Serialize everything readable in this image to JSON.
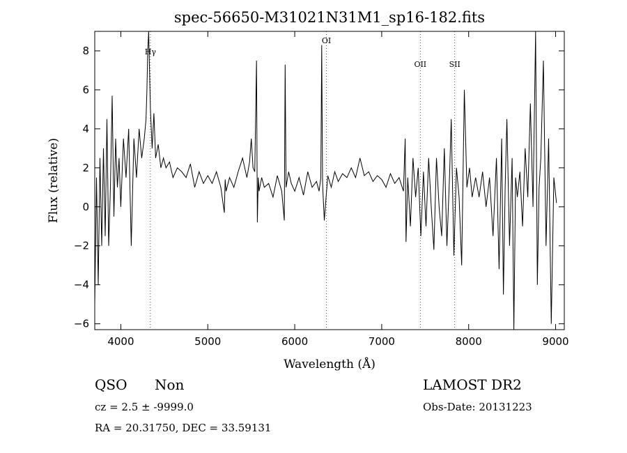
{
  "chart_data": {
    "type": "line",
    "title": "spec-56650-M31021N31M1_sp16-182.fits",
    "xlabel": "Wavelength (Å)",
    "ylabel": "Flux (relative)",
    "xlim": [
      3700,
      9100
    ],
    "ylim": [
      -6.3,
      9.0
    ],
    "xticks": [
      4000,
      5000,
      6000,
      7000,
      8000,
      9000
    ],
    "yticks": [
      -6,
      -4,
      -2,
      0,
      2,
      4,
      6,
      8
    ],
    "line_markers": [
      {
        "label": "Hγ",
        "wavelength": 4340
      },
      {
        "label": "OI",
        "wavelength": 6364
      },
      {
        "label": "OII",
        "wavelength": 7444
      },
      {
        "label": "SII",
        "wavelength": 7840
      }
    ],
    "series": [
      {
        "x": [
          3700,
          3720,
          3740,
          3760,
          3780,
          3800,
          3820,
          3840,
          3860,
          3880,
          3900,
          3920,
          3940,
          3960,
          3980,
          4000,
          4030,
          4060,
          4090,
          4120,
          4150,
          4180,
          4210,
          4240,
          4270,
          4290,
          4300,
          4310,
          4320,
          4340,
          4360,
          4380,
          4400,
          4430,
          4460,
          4490,
          4520,
          4560,
          4600,
          4650,
          4700,
          4750,
          4800,
          4850,
          4900,
          4950,
          5000,
          5050,
          5100,
          5150,
          5190,
          5200,
          5210,
          5250,
          5300,
          5350,
          5400,
          5450,
          5480,
          5500,
          5520,
          5540,
          5560,
          5570,
          5580,
          5590,
          5620,
          5650,
          5700,
          5750,
          5800,
          5850,
          5880,
          5890,
          5900,
          5930,
          5960,
          6000,
          6050,
          6100,
          6150,
          6200,
          6250,
          6280,
          6300,
          6310,
          6320,
          6340,
          6380,
          6420,
          6460,
          6500,
          6550,
          6600,
          6650,
          6700,
          6750,
          6800,
          6850,
          6900,
          6950,
          7000,
          7050,
          7100,
          7150,
          7200,
          7250,
          7270,
          7280,
          7300,
          7330,
          7360,
          7390,
          7420,
          7450,
          7480,
          7510,
          7540,
          7570,
          7600,
          7630,
          7660,
          7690,
          7720,
          7750,
          7780,
          7800,
          7830,
          7860,
          7890,
          7920,
          7950,
          7980,
          8010,
          8040,
          8080,
          8120,
          8160,
          8200,
          8240,
          8280,
          8320,
          8350,
          8380,
          8400,
          8420,
          8440,
          8470,
          8500,
          8520,
          8540,
          8560,
          8590,
          8620,
          8650,
          8680,
          8710,
          8740,
          8770,
          8790,
          8810,
          8830,
          8860,
          8890,
          8920,
          8950,
          8980,
          9010
        ],
        "y": [
          -5.0,
          1.5,
          -4.0,
          2.5,
          -2.0,
          3.0,
          -1.5,
          4.5,
          -2.0,
          1.0,
          5.7,
          -0.5,
          3.5,
          1.0,
          2.5,
          0.0,
          3.5,
          1.5,
          4.0,
          -2.0,
          3.5,
          1.5,
          4.0,
          2.5,
          3.5,
          4.5,
          6.0,
          8.0,
          9.0,
          5.0,
          3.0,
          4.8,
          2.5,
          3.2,
          2.0,
          2.5,
          2.0,
          2.3,
          1.5,
          2.0,
          1.8,
          1.5,
          2.2,
          1.0,
          1.8,
          1.2,
          1.6,
          1.2,
          1.8,
          1.0,
          -0.3,
          1.4,
          0.8,
          1.5,
          1.0,
          1.8,
          2.5,
          1.5,
          2.3,
          3.5,
          2.0,
          1.8,
          7.5,
          -0.8,
          1.5,
          0.8,
          1.5,
          1.0,
          1.2,
          0.5,
          1.6,
          0.8,
          -0.7,
          7.3,
          1.0,
          1.8,
          1.2,
          0.8,
          1.5,
          0.6,
          1.8,
          1.0,
          1.3,
          0.8,
          1.5,
          8.3,
          1.2,
          -0.7,
          1.6,
          1.0,
          1.8,
          1.3,
          1.7,
          1.5,
          2.0,
          1.5,
          2.5,
          1.6,
          1.8,
          1.3,
          1.6,
          1.4,
          1.0,
          1.7,
          1.2,
          1.5,
          0.8,
          3.5,
          -1.8,
          1.5,
          -1.0,
          2.5,
          0.5,
          2.0,
          -1.5,
          1.8,
          -1.0,
          2.5,
          0.0,
          -2.2,
          2.5,
          0.0,
          -1.5,
          3.0,
          -2.0,
          1.5,
          4.5,
          -2.5,
          2.0,
          0.5,
          -3.0,
          6.0,
          1.0,
          2.0,
          0.5,
          1.5,
          0.5,
          1.8,
          0.0,
          1.5,
          -1.5,
          2.5,
          -3.2,
          3.5,
          -4.5,
          1.0,
          4.5,
          -2.0,
          2.5,
          -6.3,
          1.5,
          0.5,
          1.8,
          -1.0,
          3.0,
          0.5,
          5.3,
          0.0,
          9.0,
          -4.0,
          1.0,
          2.5,
          7.5,
          -2.0,
          3.5,
          -6.0,
          1.5,
          0.2
        ]
      }
    ]
  },
  "info": {
    "class": "QSO",
    "subclass": "Non",
    "survey": "LAMOST DR2",
    "cz": "cz = 2.5 ± -9999.0",
    "obs_date": "Obs-Date: 20131223",
    "coords": "RA =  20.31750, DEC =  33.59131"
  }
}
